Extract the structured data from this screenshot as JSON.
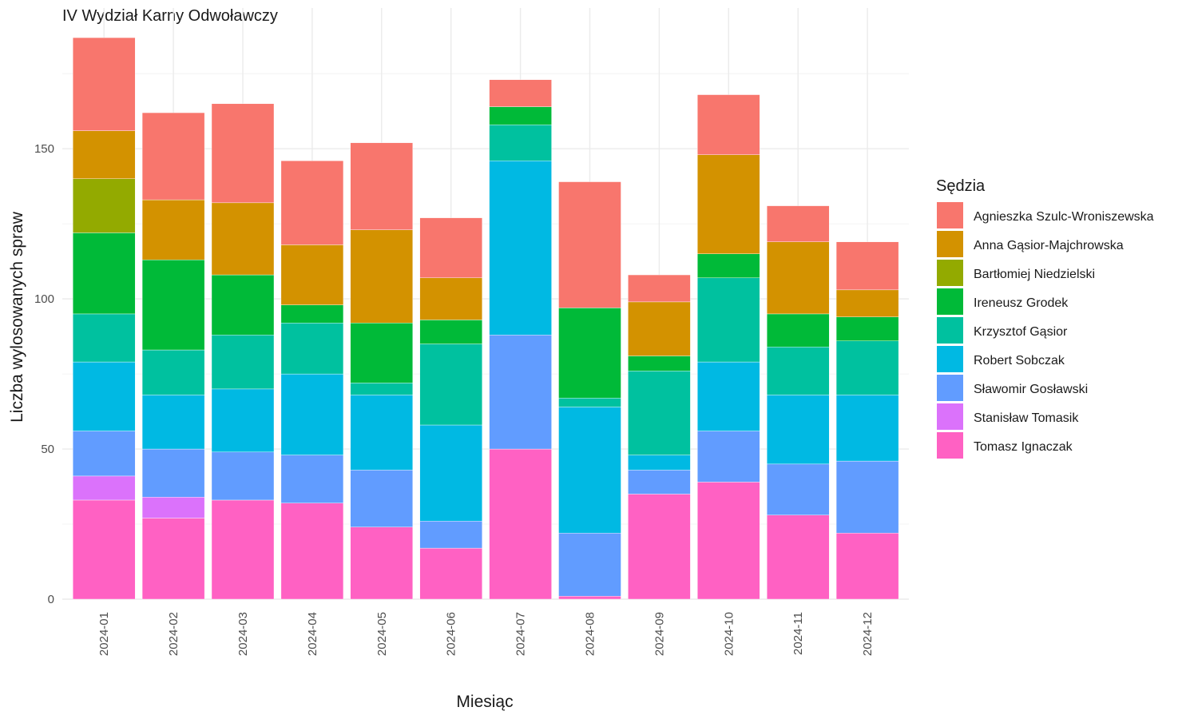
{
  "chart_data": {
    "type": "bar",
    "stacked": true,
    "title": "IV Wydział Karny Odwoławczy",
    "xlabel": "Miesiąc",
    "ylabel": "Liczba wylosowanych spraw",
    "ylim": [
      0,
      190
    ],
    "yticks": [
      0,
      50,
      100,
      150
    ],
    "grid": true,
    "legend_position": "right",
    "legend_title": "Sędzia",
    "categories": [
      "2024-01",
      "2024-02",
      "2024-03",
      "2024-04",
      "2024-05",
      "2024-06",
      "2024-07",
      "2024-08",
      "2024-09",
      "2024-10",
      "2024-11",
      "2024-12"
    ],
    "series": [
      {
        "name": "Agnieszka Szulc-Wroniszewska",
        "color": "#F8766D",
        "values": [
          31,
          29,
          33,
          28,
          29,
          20,
          9,
          42,
          9,
          20,
          12,
          16
        ]
      },
      {
        "name": "Anna Gąsior-Majchrowska",
        "color": "#D39200",
        "values": [
          16,
          20,
          24,
          20,
          31,
          14,
          0,
          0,
          18,
          33,
          24,
          9
        ]
      },
      {
        "name": "Bartłomiej Niedzielski",
        "color": "#93AA00",
        "values": [
          18,
          0,
          0,
          0,
          0,
          0,
          0,
          0,
          0,
          0,
          0,
          0
        ]
      },
      {
        "name": "Ireneusz Grodek",
        "color": "#00BA38",
        "values": [
          27,
          30,
          20,
          6,
          20,
          8,
          6,
          30,
          5,
          8,
          11,
          8
        ]
      },
      {
        "name": "Krzysztof Gąsior",
        "color": "#00C19F",
        "values": [
          16,
          15,
          18,
          17,
          4,
          27,
          12,
          3,
          28,
          28,
          16,
          18
        ]
      },
      {
        "name": "Robert Sobczak",
        "color": "#00B9E3",
        "values": [
          23,
          18,
          21,
          27,
          25,
          32,
          58,
          42,
          5,
          23,
          23,
          22
        ]
      },
      {
        "name": "Sławomir Gosławski",
        "color": "#619CFF",
        "values": [
          15,
          16,
          16,
          16,
          19,
          9,
          38,
          21,
          8,
          17,
          17,
          24
        ]
      },
      {
        "name": "Stanisław Tomasik",
        "color": "#DB72FB",
        "values": [
          8,
          7,
          0,
          0,
          0,
          0,
          0,
          0,
          0,
          0,
          0,
          0
        ]
      },
      {
        "name": "Tomasz Ignaczak",
        "color": "#FF61C3",
        "values": [
          33,
          27,
          33,
          32,
          24,
          17,
          50,
          1,
          35,
          39,
          28,
          22
        ]
      }
    ]
  }
}
